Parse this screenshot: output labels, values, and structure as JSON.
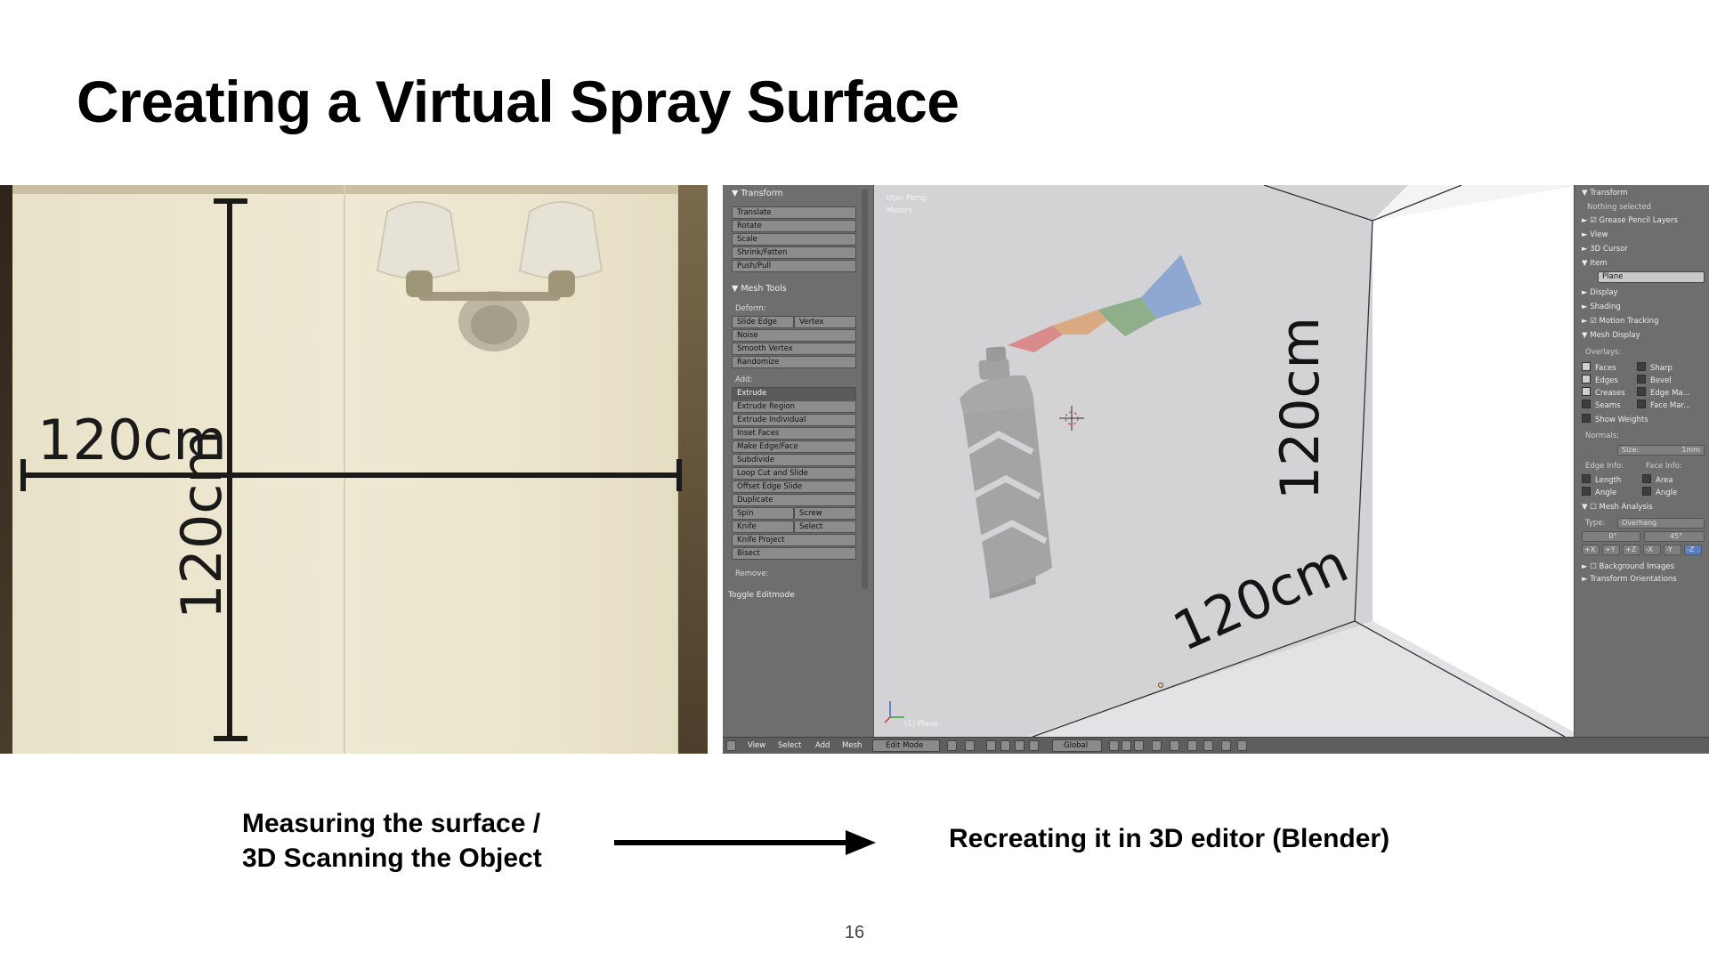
{
  "slide": {
    "title": "Creating a Virtual Spray Surface",
    "page_number": "16"
  },
  "photo": {
    "horizontal_label": "120cm",
    "vertical_label": "120cm"
  },
  "blender": {
    "tool_shelf": {
      "transform_header": "▼ Transform",
      "transform_buttons": [
        "Translate",
        "Rotate",
        "Scale",
        "Shrink/Fatten",
        "Push/Pull"
      ],
      "mesh_tools_header": "▼ Mesh Tools",
      "deform_label": "Deform:",
      "deform_row": [
        "Slide Edge",
        "Vertex"
      ],
      "deform_buttons": [
        "Noise",
        "Smooth Vertex",
        "Randomize"
      ],
      "add_label": "Add:",
      "add_buttons": [
        "Extrude",
        "Extrude Region",
        "Extrude Individual",
        "Inset Faces",
        "Make Edge/Face",
        "Subdivide",
        "Loop Cut and Slide",
        "Offset Edge Slide",
        "Duplicate"
      ],
      "spin_row": [
        "Spin",
        "Screw"
      ],
      "knife_row": [
        "Knife",
        "Select"
      ],
      "more_buttons": [
        "Knife Project",
        "Bisect"
      ],
      "remove_label": "Remove:",
      "toggle_label": "Toggle Editmode"
    },
    "viewport": {
      "view_name": "User Persp",
      "units": "Meters",
      "object_label": "(1) Plane",
      "vertical_dimension": "120cm",
      "bottom_dimension": "120cm"
    },
    "properties": {
      "transform_header": "▼ Transform",
      "nothing_selected": "Nothing selected",
      "grease_pencil": "► ☑ Grease Pencil Layers",
      "view": "► View",
      "cursor": "► 3D Cursor",
      "item": "▼ Item",
      "item_name": "Plane",
      "display": "► Display",
      "shading": "► Shading",
      "motion_tracking": "► ☑ Motion Tracking",
      "mesh_display": "▼ Mesh Display",
      "overlays_label": "Overlays:",
      "overlays_left": [
        "Faces",
        "Edges",
        "Creases",
        "Seams",
        "Show Weights"
      ],
      "overlays_right": [
        "Sharp",
        "Bevel",
        "Edge Ma...",
        "Face Mar..."
      ],
      "normals_label": "Normals:",
      "size_label": "Size:",
      "size_value": "1mm",
      "edge_info_label": "Edge Info:",
      "face_info_label": "Face Info:",
      "edge_info": [
        "Length",
        "Angle"
      ],
      "face_info": [
        "Area",
        "Angle"
      ],
      "mesh_analysis": "▼ ☐ Mesh Analysis",
      "type_label": "Type:",
      "type_value": "Overhang",
      "range_min": "0°",
      "range_max": "45°",
      "axes": [
        "+X",
        "+Y",
        "+Z",
        "-X",
        "-Y",
        "-Z"
      ],
      "background_images": "► ☐ Background Images",
      "transform_orientations": "► Transform Orientations"
    },
    "statusbar": {
      "menus": [
        "View",
        "Select",
        "Add",
        "Mesh"
      ],
      "mode": "Edit Mode",
      "orientation": "Global"
    }
  },
  "captions": {
    "left_line1": "Measuring the surface /",
    "left_line2": "3D Scanning the Object",
    "right": "Recreating it in 3D editor (Blender)"
  },
  "colors": {
    "spray_red": "#d98a8a",
    "spray_orange": "#d9a982",
    "spray_green": "#8fae8a",
    "spray_blue": "#8fa8d2",
    "can_gray": "#9b9b9b"
  }
}
